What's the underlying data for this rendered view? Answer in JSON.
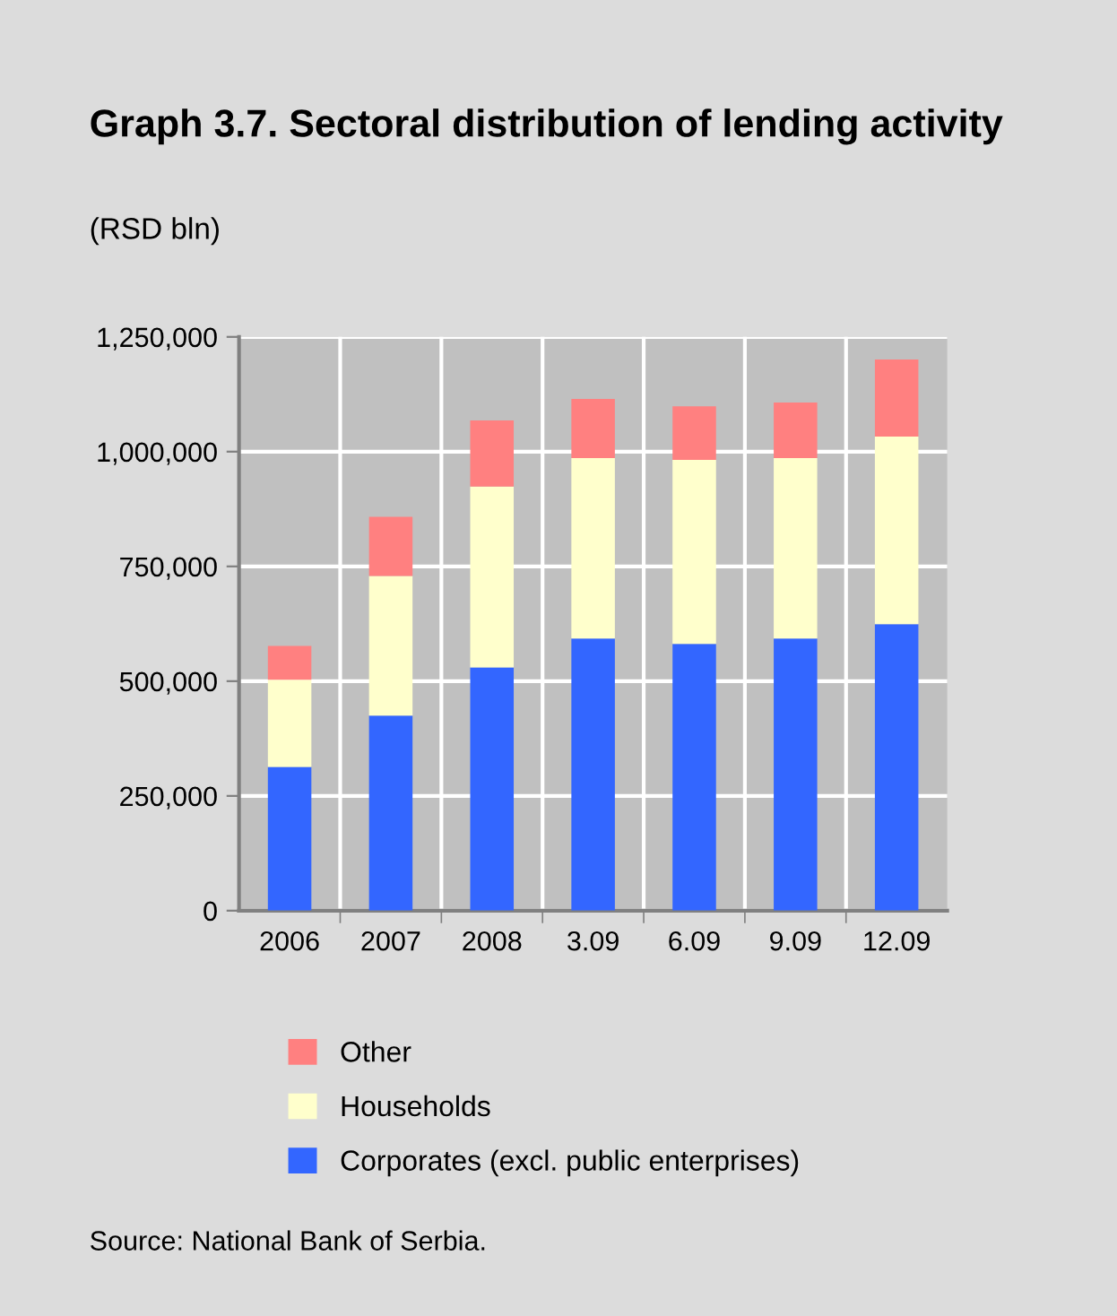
{
  "chart_data": {
    "type": "bar",
    "title": "Graph 3.7. Sectoral distribution of lending activity",
    "subtitle": "(RSD bln)",
    "categories": [
      "2006",
      "2007",
      "2008",
      "3.09",
      "6.09",
      "9.09",
      "12.09"
    ],
    "stacked": true,
    "series": [
      {
        "name": "Corporates (excl. public enterprises)",
        "color": "#3366ff",
        "values": [
          313000,
          425000,
          530000,
          593000,
          581000,
          593000,
          624000
        ]
      },
      {
        "name": "Households",
        "color": "#ffffcc",
        "values": [
          190000,
          304000,
          394000,
          393000,
          401000,
          393000,
          409000
        ]
      },
      {
        "name": "Other",
        "color": "#ff8080",
        "values": [
          74000,
          129000,
          144000,
          129000,
          117000,
          121000,
          168000
        ]
      }
    ],
    "ylim": [
      0,
      1250000
    ],
    "yticks": [
      {
        "value": 0,
        "label": "0"
      },
      {
        "value": 250000,
        "label": "250,000"
      },
      {
        "value": 500000,
        "label": "500,000"
      },
      {
        "value": 750000,
        "label": "750,000"
      },
      {
        "value": 1000000,
        "label": "1,000,000"
      },
      {
        "value": 1250000,
        "label": "1,250,000"
      }
    ],
    "grid": true,
    "legend": "bottom",
    "annotations": [
      "Source: National Bank of Serbia."
    ]
  }
}
